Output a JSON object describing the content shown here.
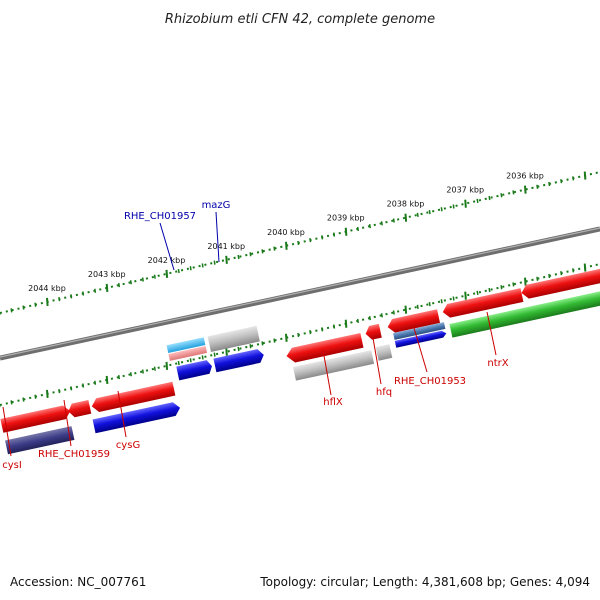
{
  "title": "Rhizobium etli CFN 42, complete genome",
  "footer": {
    "accession": "Accession: NC_007761",
    "summary": "Topology: circular; Length: 4,381,608 bp; Genes: 4,094"
  },
  "scale_ticks": [
    {
      "kbp": 2036,
      "label": "2036 kbp"
    },
    {
      "kbp": 2037,
      "label": "2037 kbp"
    },
    {
      "kbp": 2038,
      "label": "2038 kbp"
    },
    {
      "kbp": 2039,
      "label": "2039 kbp"
    },
    {
      "kbp": 2040,
      "label": "2040 kbp"
    },
    {
      "kbp": 2041,
      "label": "2041 kbp"
    },
    {
      "kbp": 2042,
      "label": "2042 kbp"
    },
    {
      "kbp": 2043,
      "label": "2043 kbp"
    },
    {
      "kbp": 2044,
      "label": "2044 kbp"
    }
  ],
  "gene_labels": [
    {
      "text": "RHE_CH01957",
      "color": "#0000aa"
    },
    {
      "text": "mazG",
      "color": "#0000aa"
    },
    {
      "text": "cysI",
      "color": "#cc0000"
    },
    {
      "text": "RHE_CH01959",
      "color": "#cc0000"
    },
    {
      "text": "cysG",
      "color": "#cc0000"
    },
    {
      "text": "hflX",
      "color": "#cc0000"
    },
    {
      "text": "hfq",
      "color": "#cc0000"
    },
    {
      "text": "RHE_CH01953",
      "color": "#cc0000"
    },
    {
      "text": "ntrX",
      "color": "#cc0000"
    }
  ],
  "colors": {
    "backbone": "#808080",
    "tick": "#1a7a1a",
    "red": "#ee1111",
    "blue": "#1111dd",
    "green": "#33bb33",
    "grey": "#b8b8b8",
    "navy": "#3c3c88",
    "steel": "#4a78b0",
    "cyan": "#33bbee",
    "pink": "#ee8888"
  }
}
